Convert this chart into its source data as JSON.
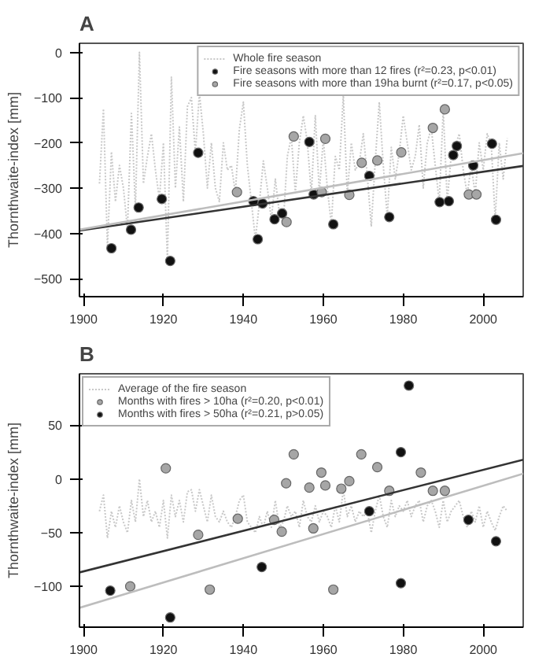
{
  "chart_data": [
    {
      "type": "scatter",
      "title": "A",
      "ylabel": "Thornthwaite-index [mm]",
      "xlim": [
        1899,
        2010
      ],
      "ylim": [
        -540,
        20
      ],
      "xticks": [
        1900,
        1920,
        1940,
        1960,
        1980,
        2000
      ],
      "yticks": [
        -500,
        -400,
        -300,
        -200,
        -100,
        0
      ],
      "grid": false,
      "legend": "top right",
      "marker": "circle",
      "series": [
        {
          "name": "Whole fire season",
          "type": "line",
          "line_style": "dotted",
          "marker": "none",
          "color": "#c8c8c8",
          "x": [
            1904,
            1905,
            1906,
            1907,
            1908,
            1909,
            1910,
            1911,
            1912,
            1913,
            1914,
            1915,
            1916,
            1917,
            1918,
            1919,
            1920,
            1921,
            1922,
            1923,
            1924,
            1925,
            1926,
            1927,
            1928,
            1929,
            1930,
            1931,
            1932,
            1933,
            1934,
            1935,
            1936,
            1937,
            1938,
            1939,
            1940,
            1941,
            1942,
            1943,
            1944,
            1945,
            1946,
            1947,
            1948,
            1949,
            1950,
            1951,
            1952,
            1953,
            1954,
            1955,
            1956,
            1957,
            1958,
            1959,
            1960,
            1961,
            1962,
            1963,
            1964,
            1965,
            1966,
            1967,
            1968,
            1969,
            1970,
            1971,
            1972,
            1973,
            1974,
            1975,
            1976,
            1977,
            1978,
            1979,
            1980,
            1981,
            1982,
            1983,
            1984,
            1985,
            1986,
            1987,
            1988,
            1989,
            1990,
            1991,
            1992,
            1993,
            1994,
            1995,
            1996,
            1997,
            1998,
            1999,
            2000,
            2001,
            2002,
            2003,
            2004,
            2005,
            2006
          ],
          "values": [
            -290,
            -125,
            -430,
            -220,
            -330,
            -250,
            -300,
            -390,
            -135,
            -345,
            0,
            -290,
            -230,
            -180,
            -260,
            -325,
            -200,
            -460,
            -55,
            -300,
            -165,
            -330,
            -120,
            -100,
            -222,
            -90,
            -180,
            -300,
            -200,
            -300,
            -330,
            -200,
            -260,
            -250,
            -310,
            -170,
            -110,
            -250,
            -330,
            -413,
            -334,
            -240,
            -300,
            -370,
            -280,
            -356,
            -375,
            -230,
            -186,
            -310,
            -200,
            -140,
            -198,
            -314,
            -140,
            -309,
            -191,
            -300,
            -380,
            -230,
            -260,
            -95,
            -315,
            -200,
            -260,
            -244,
            -180,
            -273,
            -385,
            -239,
            -110,
            -250,
            -364,
            -210,
            -280,
            -221,
            -140,
            -200,
            -260,
            -230,
            -160,
            -300,
            -200,
            -167,
            -250,
            -331,
            -126,
            -329,
            -227,
            -207,
            -180,
            -260,
            -314,
            -250,
            -314,
            -200,
            -260,
            -180,
            -202,
            -370,
            -200,
            -280,
            -190
          ]
        },
        {
          "name": "Fire seasons with more than 12 fires (r²=0.23, p<0.01)",
          "color": "#111111",
          "x": [
            1907,
            1911.9,
            1913.8,
            1919.6,
            1921.7,
            1928.7,
            1942.5,
            1943.6,
            1944.8,
            1947.8,
            1949.7,
            1956.5,
            1957.6,
            1962.5,
            1971.5,
            1976.5,
            1989.1,
            1991.4,
            1992.5,
            1993.4,
            1997.5,
            2002.2,
            2003.2
          ],
          "values": [
            -433,
            -392,
            -343,
            -324,
            -461,
            -222,
            -329,
            -413,
            -334,
            -369,
            -356,
            -198,
            -314,
            -380,
            -273,
            -364,
            -331,
            -329,
            -227,
            -207,
            -250,
            -202,
            -370
          ]
        },
        {
          "name": "Fire seasons with more than 19ha burnt (r²=0.17, p<0.05)",
          "color": "#a6a6a6",
          "x": [
            1938.4,
            1950.8,
            1952.6,
            1959.6,
            1960.5,
            1966.5,
            1969.6,
            1973.5,
            1979.5,
            1987.4,
            1990.4,
            1996.4,
            1998.3
          ],
          "values": [
            -309,
            -375,
            -186,
            -309,
            -191,
            -315,
            -244,
            -239,
            -221,
            -167,
            -126,
            -314,
            -314
          ]
        },
        {
          "type": "line",
          "line_style": "solid",
          "marker": "none",
          "color": "#333333",
          "x": [
            1899,
            2010
          ],
          "values": [
            -394,
            -251
          ]
        },
        {
          "type": "line",
          "line_style": "solid",
          "marker": "none",
          "color": "#bdbdbd",
          "x": [
            1899,
            2010
          ],
          "values": [
            -392,
            -223
          ]
        }
      ]
    },
    {
      "type": "scatter",
      "title": "B",
      "ylabel": "Thornthwaite-index [mm]",
      "xlim": [
        1899,
        2010
      ],
      "ylim": [
        -138,
        98
      ],
      "xticks": [
        1900,
        1920,
        1940,
        1960,
        1980,
        2000
      ],
      "yticks": [
        -100,
        -50,
        0,
        50
      ],
      "grid": false,
      "legend": "top left",
      "marker": "circle",
      "series": [
        {
          "name": "Average of the fire season",
          "type": "line",
          "line_style": "dotted",
          "marker": "none",
          "color": "#c8c8c8",
          "x": [
            1904,
            1905,
            1906,
            1907,
            1908,
            1909,
            1910,
            1911,
            1912,
            1913,
            1914,
            1915,
            1916,
            1917,
            1918,
            1919,
            1920,
            1921,
            1922,
            1923,
            1924,
            1925,
            1926,
            1927,
            1928,
            1929,
            1930,
            1931,
            1932,
            1933,
            1934,
            1935,
            1936,
            1937,
            1938,
            1939,
            1940,
            1941,
            1942,
            1943,
            1944,
            1945,
            1946,
            1947,
            1948,
            1949,
            1950,
            1951,
            1952,
            1953,
            1954,
            1955,
            1956,
            1957,
            1958,
            1959,
            1960,
            1961,
            1962,
            1963,
            1964,
            1965,
            1966,
            1967,
            1968,
            1969,
            1970,
            1971,
            1972,
            1973,
            1974,
            1975,
            1976,
            1977,
            1978,
            1979,
            1980,
            1981,
            1982,
            1983,
            1984,
            1985,
            1986,
            1987,
            1988,
            1989,
            1990,
            1991,
            1992,
            1993,
            1994,
            1995,
            1996,
            1997,
            1998,
            1999,
            2000,
            2001,
            2002,
            2003,
            2004,
            2005,
            2006
          ],
          "values": [
            -30,
            -15,
            -55,
            -30,
            -45,
            -25,
            -40,
            -50,
            -20,
            -40,
            0,
            -35,
            -20,
            -40,
            -30,
            -45,
            -20,
            -55,
            -15,
            -35,
            -20,
            -40,
            -12,
            -10,
            -30,
            -10,
            -25,
            -40,
            -15,
            -35,
            -40,
            -30,
            -40,
            -45,
            -35,
            -20,
            -15,
            -40,
            -45,
            -50,
            -35,
            -45,
            -30,
            -45,
            -20,
            -45,
            -40,
            -25,
            -35,
            -30,
            -45,
            -20,
            -35,
            -40,
            -25,
            -40,
            -30,
            -35,
            -45,
            -25,
            -40,
            -10,
            -35,
            -25,
            -40,
            -30,
            -35,
            -30,
            -50,
            -30,
            -15,
            -35,
            -45,
            -20,
            -35,
            -25,
            -30,
            -20,
            -35,
            -25,
            -20,
            -40,
            -25,
            -20,
            -30,
            -45,
            -20,
            -40,
            -30,
            -25,
            -20,
            -35,
            -45,
            -30,
            -40,
            -25,
            -45,
            -30,
            -40,
            -48,
            -35,
            -25,
            -30
          ]
        },
        {
          "name": "Months with fires > 10ha (r²=0.20, p<0.01)",
          "color": "#a6a6a6",
          "x": [
            1911.7,
            1920.6,
            1928.7,
            1931.6,
            1938.6,
            1947.7,
            1949.6,
            1950.7,
            1952.6,
            1956.5,
            1957.5,
            1959.5,
            1960.5,
            1962.5,
            1964.5,
            1966.5,
            1969.5,
            1973.5,
            1976.5,
            1984.4,
            1987.4,
            1990.4
          ],
          "values": [
            -100,
            10,
            -52,
            -103,
            -37,
            -38,
            -49,
            -4,
            23,
            -8,
            -46,
            6,
            -6,
            -103,
            -9,
            -2,
            23,
            11,
            -11,
            6,
            -11,
            -11
          ]
        },
        {
          "name": "Months with fires > 50ha (r²=0.21, p>0.05)",
          "color": "#111111",
          "x": [
            1906.7,
            1921.7,
            1944.6,
            1971.5,
            1979.4,
            1979.4,
            1981.4,
            1996.3,
            2003.2
          ],
          "values": [
            -104,
            -129,
            -82,
            -30,
            25,
            -97,
            87,
            -38,
            -58
          ]
        },
        {
          "type": "line",
          "line_style": "solid",
          "marker": "none",
          "color": "#333333",
          "x": [
            1899,
            2010
          ],
          "values": [
            -87,
            18
          ]
        },
        {
          "type": "line",
          "line_style": "solid",
          "marker": "none",
          "color": "#bdbdbd",
          "x": [
            1899,
            2010
          ],
          "values": [
            -120,
            5
          ]
        }
      ]
    }
  ]
}
